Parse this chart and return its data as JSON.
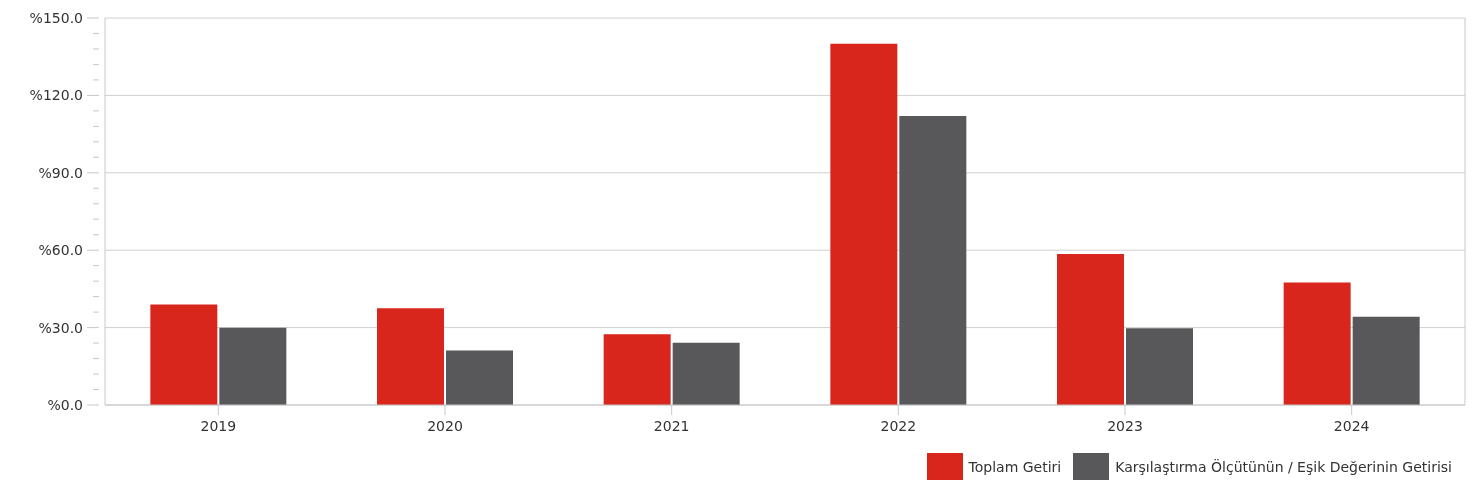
{
  "chart_data": {
    "type": "bar",
    "categories": [
      "2019",
      "2020",
      "2021",
      "2022",
      "2023",
      "2024"
    ],
    "series": [
      {
        "name": "Toplam Getiri",
        "color": "#d9261c",
        "values": [
          39.0,
          37.5,
          27.4,
          140.0,
          58.5,
          47.5
        ]
      },
      {
        "name": "Karşılaştırma Ölçütünün / Eşik Değerinin Getirisi",
        "color": "#58585a",
        "values": [
          29.9,
          21.1,
          24.1,
          112.0,
          29.7,
          34.2
        ]
      }
    ],
    "ylim": [
      0,
      150
    ],
    "yticks": [
      {
        "value": 0,
        "label": "%0.0"
      },
      {
        "value": 6,
        "label": null
      },
      {
        "value": 12,
        "label": null
      },
      {
        "value": 18,
        "label": null
      },
      {
        "value": 24,
        "label": null
      },
      {
        "value": 30,
        "label": "%30.0"
      },
      {
        "value": 36,
        "label": null
      },
      {
        "value": 42,
        "label": null
      },
      {
        "value": 48,
        "label": null
      },
      {
        "value": 54,
        "label": null
      },
      {
        "value": 60,
        "label": "%60.0"
      },
      {
        "value": 66,
        "label": null
      },
      {
        "value": 72,
        "label": null
      },
      {
        "value": 78,
        "label": null
      },
      {
        "value": 84,
        "label": null
      },
      {
        "value": 90,
        "label": "%90.0"
      },
      {
        "value": 96,
        "label": null
      },
      {
        "value": 102,
        "label": null
      },
      {
        "value": 108,
        "label": null
      },
      {
        "value": 114,
        "label": null
      },
      {
        "value": 120,
        "label": "%120.0"
      },
      {
        "value": 126,
        "label": null
      },
      {
        "value": 132,
        "label": null
      },
      {
        "value": 138,
        "label": null
      },
      {
        "value": 144,
        "label": null
      },
      {
        "value": 150,
        "label": "%150.0"
      }
    ],
    "grid": "y",
    "legend": "bottom right"
  }
}
